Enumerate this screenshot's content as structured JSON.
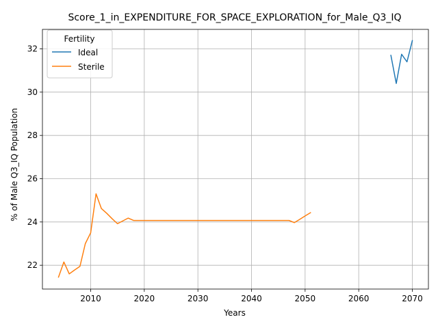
{
  "chart_data": {
    "type": "line",
    "title": "Score_1_in_EXPENDITURE_FOR_SPACE_EXPLORATION_for_Male_Q3_IQ",
    "xlabel": "Years",
    "ylabel": "% of Male Q3_IQ Population",
    "xlim": [
      2001,
      2073
    ],
    "ylim": [
      20.9,
      32.9
    ],
    "xticks": [
      2010,
      2020,
      2030,
      2040,
      2050,
      2060,
      2070
    ],
    "yticks": [
      22,
      24,
      26,
      28,
      30,
      32
    ],
    "grid": true,
    "legend": {
      "title": "Fertility",
      "placement": "upper left"
    },
    "series": [
      {
        "name": "Ideal",
        "color": "#1f77b4",
        "x": [
          2066,
          2067,
          2068,
          2069,
          2070
        ],
        "y": [
          31.7,
          30.4,
          31.75,
          31.4,
          32.38
        ]
      },
      {
        "name": "Sterile",
        "color": "#ff7f0e",
        "x": [
          2004,
          2005,
          2006,
          2007,
          2008,
          2009,
          2010,
          2011,
          2012,
          2013,
          2014,
          2015,
          2016,
          2017,
          2018,
          2019,
          2020,
          2025,
          2030,
          2035,
          2040,
          2045,
          2047,
          2048,
          2049,
          2050,
          2051
        ],
        "y": [
          21.45,
          22.15,
          21.6,
          21.78,
          21.95,
          23.0,
          23.5,
          25.3,
          24.62,
          24.4,
          24.15,
          23.92,
          24.05,
          24.18,
          24.07,
          24.07,
          24.07,
          24.07,
          24.07,
          24.07,
          24.07,
          24.07,
          24.07,
          23.97,
          24.12,
          24.28,
          24.43
        ]
      }
    ]
  }
}
